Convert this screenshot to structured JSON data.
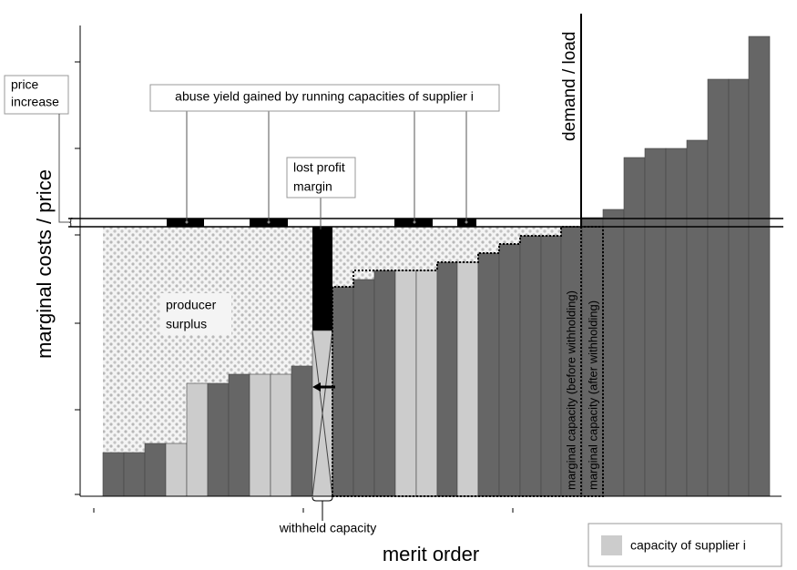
{
  "axes": {
    "y_label": "marginal costs / price",
    "x_label": "merit order"
  },
  "annotations": {
    "price_increase": [
      "price",
      "increase"
    ],
    "abuse_yield": "abuse yield gained by running capacities of supplier i",
    "lost_profit": [
      "lost profit",
      "margin"
    ],
    "demand": "demand / load",
    "producer_surplus": [
      "producer",
      "surplus"
    ],
    "marginal_before": "marginal capacity (before withholding)",
    "marginal_after": "marginal capacity (after withholding)",
    "withheld": "withheld capacity"
  },
  "legend": {
    "label": "capacity of supplier i"
  }
}
